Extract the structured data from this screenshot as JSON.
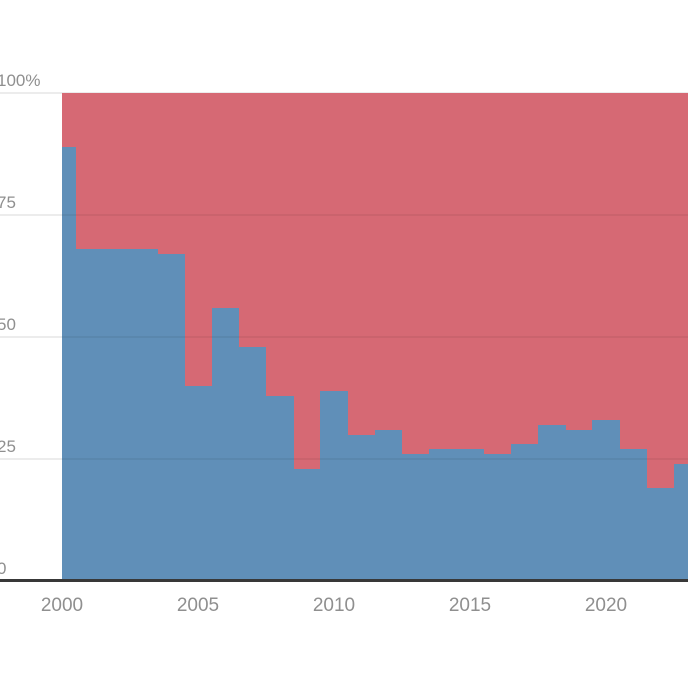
{
  "chart_data": {
    "type": "area",
    "variant": "100-percent-stacked-step",
    "x": [
      2000,
      2001,
      2002,
      2003,
      2004,
      2005,
      2006,
      2007,
      2008,
      2009,
      2010,
      2011,
      2012,
      2013,
      2014,
      2015,
      2016,
      2017,
      2018,
      2019,
      2020,
      2021,
      2022,
      2023
    ],
    "series": [
      {
        "name": "blue-bottom-share",
        "color": "#608fb8",
        "values": [
          89,
          68,
          68,
          68,
          67,
          40,
          56,
          48,
          38,
          23,
          39,
          30,
          31,
          26,
          27,
          27,
          26,
          28,
          32,
          31,
          33,
          27,
          19,
          24
        ]
      },
      {
        "name": "red-top-share",
        "color": "#d66974",
        "values": [
          11,
          32,
          32,
          32,
          33,
          60,
          44,
          52,
          62,
          77,
          61,
          70,
          69,
          74,
          73,
          73,
          74,
          72,
          68,
          69,
          67,
          73,
          81,
          76
        ]
      }
    ],
    "ylim": [
      0,
      100
    ],
    "xlim": [
      2000,
      2023
    ],
    "yticks": [
      {
        "label": "100%",
        "value": 100
      },
      {
        "label": "75",
        "value": 75
      },
      {
        "label": "50",
        "value": 50
      },
      {
        "label": "25",
        "value": 25
      },
      {
        "label": "0",
        "value": 0
      }
    ],
    "xticks": [
      {
        "label": "2000",
        "value": 2000
      },
      {
        "label": "2005",
        "value": 2005
      },
      {
        "label": "2010",
        "value": 2010
      },
      {
        "label": "2015",
        "value": 2015
      },
      {
        "label": "2020",
        "value": 2020
      }
    ],
    "grid": true,
    "legend": "none",
    "title": ""
  },
  "colors": {
    "background": "#ffffff",
    "gridline": "#ececec",
    "axis_line": "#383838",
    "tick_label": "#8f8f8f"
  }
}
